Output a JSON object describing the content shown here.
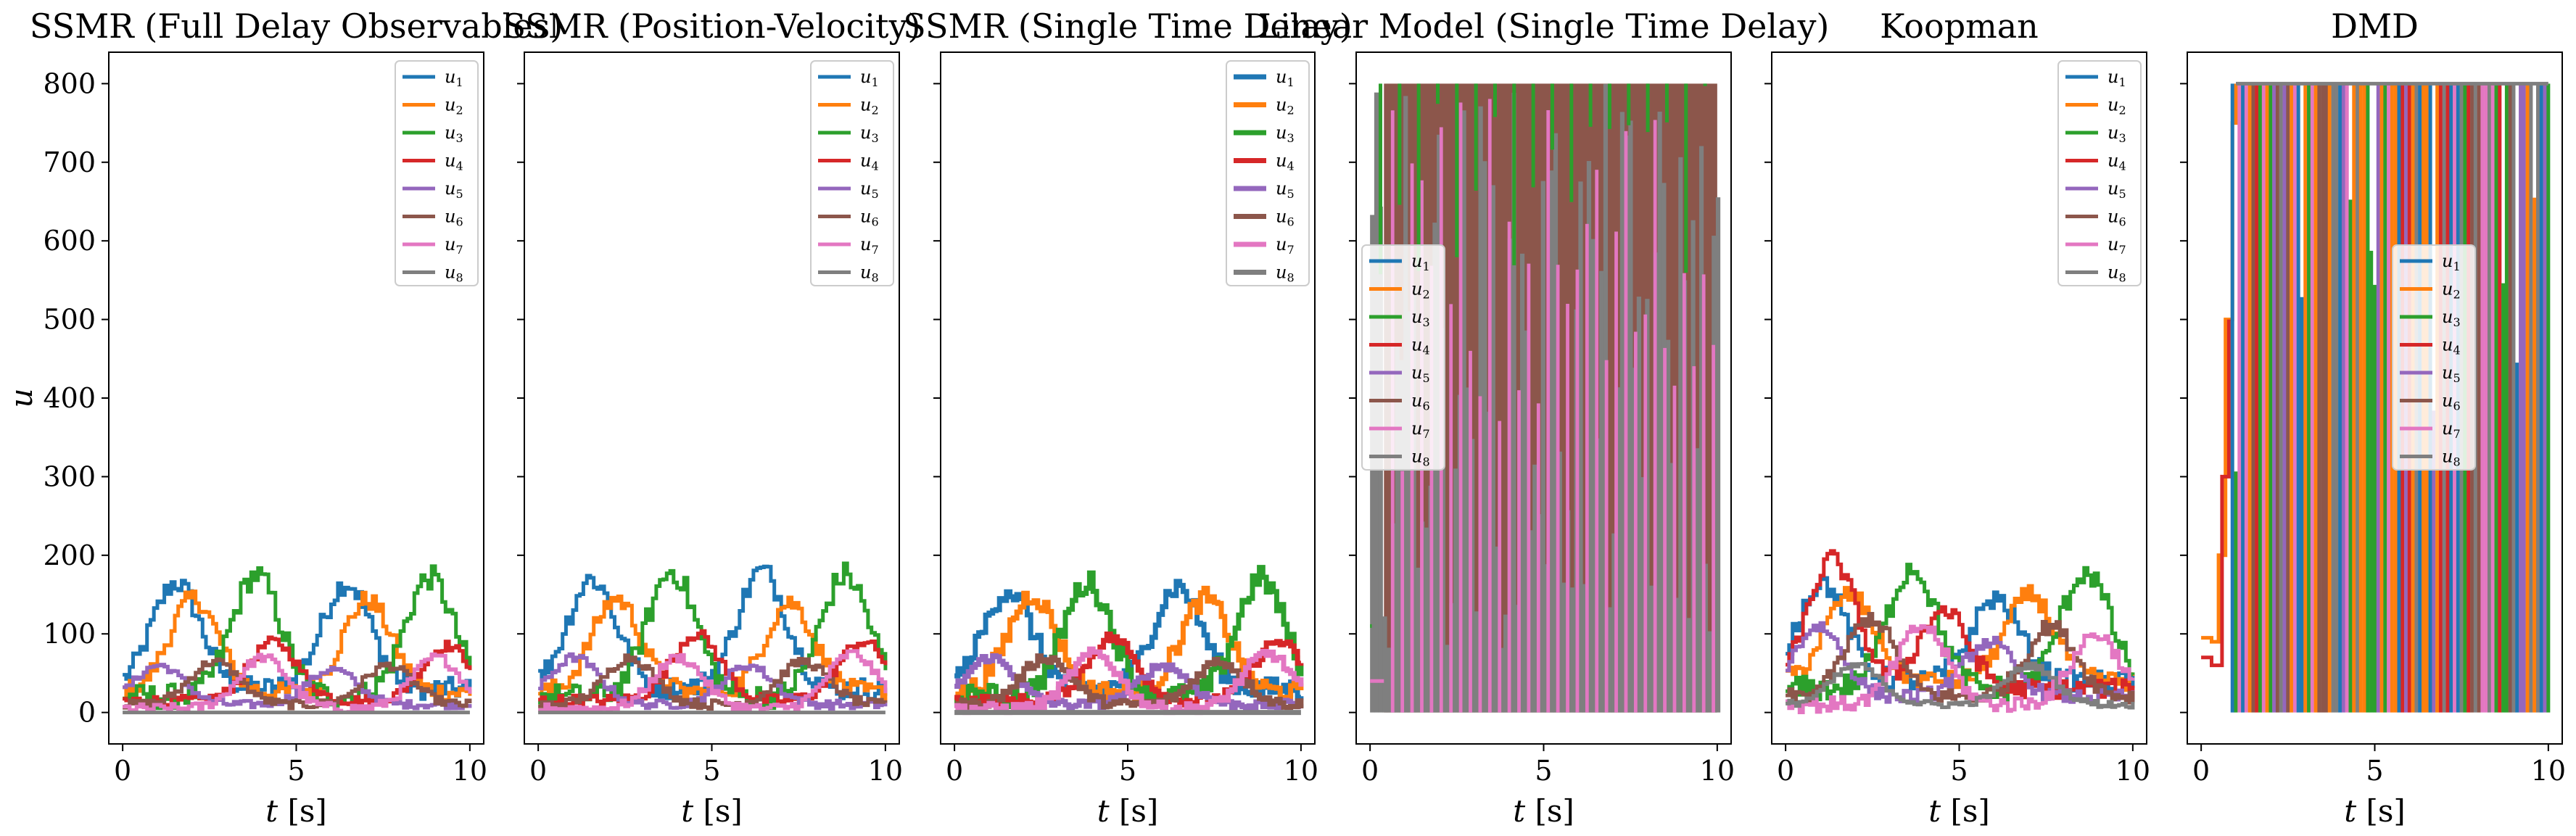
{
  "colors": {
    "u1": "#1f77b4",
    "u2": "#ff7f0e",
    "u3": "#2ca02c",
    "u4": "#d62728",
    "u5": "#9467bd",
    "u6": "#8c564b",
    "u7": "#e377c2",
    "u8": "#7f7f7f"
  },
  "chart_data": [
    {
      "type": "line",
      "title": "SSMR (Full Delay Observables)",
      "xlabel": "t [s]",
      "ylabel": "u",
      "xlim": [
        -0.4,
        10.4
      ],
      "ylim": [
        -40,
        840
      ],
      "xticks": [
        0,
        5,
        10
      ],
      "yticks": [
        0,
        100,
        200,
        300,
        400,
        500,
        600,
        700,
        800
      ],
      "legend": "upper right",
      "behavior": "oscillatory",
      "series": [
        {
          "name": "u1",
          "peaks": [
            [
              1.5,
              165
            ],
            [
              6.4,
              165
            ]
          ],
          "base": 30,
          "amp": 130
        },
        {
          "name": "u2",
          "peaks": [
            [
              2.0,
              145
            ],
            [
              7.0,
              143
            ]
          ],
          "base": 25,
          "amp": 115
        },
        {
          "name": "u3",
          "peaks": [
            [
              3.8,
              175
            ],
            [
              8.8,
              172
            ]
          ],
          "base": 20,
          "amp": 145
        },
        {
          "name": "u4",
          "peaks": [
            [
              4.3,
              90
            ],
            [
              9.3,
              85
            ]
          ],
          "base": 15,
          "amp": 60
        },
        {
          "name": "u5",
          "peaks": [
            [
              1.0,
              60
            ],
            [
              6.0,
              55
            ]
          ],
          "base": 10,
          "amp": 45
        },
        {
          "name": "u6",
          "peaks": [
            [
              2.6,
              65
            ],
            [
              7.6,
              60
            ]
          ],
          "base": 10,
          "amp": 50
        },
        {
          "name": "u7",
          "peaks": [
            [
              4.0,
              70
            ],
            [
              9.0,
              70
            ]
          ],
          "base": 5,
          "amp": 55
        },
        {
          "name": "u8",
          "peaks": [],
          "base": 0,
          "amp": 0
        }
      ]
    },
    {
      "type": "line",
      "title": "SSMR (Position-Velocity)",
      "xlabel": "t [s]",
      "ylabel": "",
      "xlim": [
        -0.4,
        10.4
      ],
      "ylim": [
        -40,
        840
      ],
      "xticks": [
        0,
        5,
        10
      ],
      "yticks": [
        0,
        100,
        200,
        300,
        400,
        500,
        600,
        700,
        800
      ],
      "legend": "upper right",
      "behavior": "oscillatory",
      "series": [
        {
          "name": "u1",
          "peaks": [
            [
              1.5,
              170
            ],
            [
              6.4,
              180
            ]
          ],
          "base": 30,
          "amp": 135
        },
        {
          "name": "u2",
          "peaks": [
            [
              2.2,
              145
            ],
            [
              7.2,
              140
            ]
          ],
          "base": 25,
          "amp": 115
        },
        {
          "name": "u3",
          "peaks": [
            [
              3.8,
              180
            ],
            [
              8.8,
              175
            ]
          ],
          "base": 20,
          "amp": 150
        },
        {
          "name": "u4",
          "peaks": [
            [
              4.5,
              100
            ],
            [
              9.3,
              90
            ]
          ],
          "base": 15,
          "amp": 70
        },
        {
          "name": "u5",
          "peaks": [
            [
              1.0,
              70
            ],
            [
              6.0,
              60
            ]
          ],
          "base": 10,
          "amp": 50
        },
        {
          "name": "u6",
          "peaks": [
            [
              2.6,
              70
            ],
            [
              7.6,
              65
            ]
          ],
          "base": 10,
          "amp": 55
        },
        {
          "name": "u7",
          "peaks": [
            [
              4.0,
              70
            ],
            [
              9.0,
              75
            ]
          ],
          "base": 5,
          "amp": 55
        },
        {
          "name": "u8",
          "peaks": [],
          "base": 0,
          "amp": 0
        }
      ]
    },
    {
      "type": "line",
      "title": "SSMR (Single Time Delay)",
      "xlabel": "t [s]",
      "ylabel": "",
      "xlim": [
        -0.4,
        10.4
      ],
      "ylim": [
        -40,
        840
      ],
      "xticks": [
        0,
        5,
        10
      ],
      "yticks": [
        0,
        100,
        200,
        300,
        400,
        500,
        600,
        700,
        800
      ],
      "legend": "upper right",
      "behavior": "oscillatory",
      "series": [
        {
          "name": "u1",
          "peaks": [
            [
              1.5,
              155
            ],
            [
              6.4,
              160
            ]
          ],
          "base": 30,
          "amp": 125
        },
        {
          "name": "u2",
          "peaks": [
            [
              2.2,
              150
            ],
            [
              7.2,
              145
            ]
          ],
          "base": 25,
          "amp": 120
        },
        {
          "name": "u3",
          "peaks": [
            [
              3.8,
              165
            ],
            [
              8.8,
              170
            ]
          ],
          "base": 20,
          "amp": 140
        },
        {
          "name": "u4",
          "peaks": [
            [
              4.5,
              95
            ],
            [
              9.3,
              90
            ]
          ],
          "base": 15,
          "amp": 65
        },
        {
          "name": "u5",
          "peaks": [
            [
              1.0,
              70
            ],
            [
              6.0,
              60
            ]
          ],
          "base": 10,
          "amp": 50
        },
        {
          "name": "u6",
          "peaks": [
            [
              2.6,
              70
            ],
            [
              7.6,
              65
            ]
          ],
          "base": 10,
          "amp": 55
        },
        {
          "name": "u7",
          "peaks": [
            [
              4.0,
              75
            ],
            [
              9.0,
              75
            ]
          ],
          "base": 5,
          "amp": 60
        },
        {
          "name": "u8",
          "peaks": [],
          "base": 0,
          "amp": 0
        }
      ]
    },
    {
      "type": "line",
      "title": "Linear Model (Single Time Delay)",
      "xlabel": "t [s]",
      "ylabel": "",
      "xlim": [
        -0.4,
        10.4
      ],
      "ylim": [
        -40,
        840
      ],
      "xticks": [
        0,
        5,
        10
      ],
      "yticks": [
        0,
        100,
        200,
        300,
        400,
        500,
        600,
        700,
        800
      ],
      "legend": "center left",
      "behavior": "saturated",
      "saturation": 800,
      "series": [
        {
          "name": "u1"
        },
        {
          "name": "u2"
        },
        {
          "name": "u3"
        },
        {
          "name": "u4"
        },
        {
          "name": "u5"
        },
        {
          "name": "u6"
        },
        {
          "name": "u7"
        },
        {
          "name": "u8"
        }
      ]
    },
    {
      "type": "line",
      "title": "Koopman",
      "xlabel": "t [s]",
      "ylabel": "",
      "xlim": [
        -0.4,
        10.4
      ],
      "ylim": [
        -40,
        840
      ],
      "xticks": [
        0,
        5,
        10
      ],
      "yticks": [
        0,
        100,
        200,
        300,
        400,
        500,
        600,
        700,
        800
      ],
      "legend": "upper right",
      "behavior": "oscillatory",
      "series": [
        {
          "name": "u1",
          "peaks": [
            [
              1.0,
              165
            ],
            [
              6.0,
              145
            ]
          ],
          "base": 40,
          "amp": 120
        },
        {
          "name": "u2",
          "peaks": [
            [
              1.8,
              150
            ],
            [
              7.0,
              150
            ]
          ],
          "base": 40,
          "amp": 110
        },
        {
          "name": "u3",
          "peaks": [
            [
              3.6,
              185
            ],
            [
              8.6,
              180
            ]
          ],
          "base": 30,
          "amp": 150
        },
        {
          "name": "u4",
          "peaks": [
            [
              1.3,
              195
            ],
            [
              4.5,
              130
            ]
          ],
          "base": 30,
          "amp": 110
        },
        {
          "name": "u5",
          "peaks": [
            [
              0.9,
              110
            ],
            [
              5.8,
              90
            ]
          ],
          "base": 20,
          "amp": 80
        },
        {
          "name": "u6",
          "peaks": [
            [
              2.4,
              120
            ],
            [
              7.6,
              110
            ]
          ],
          "base": 20,
          "amp": 90
        },
        {
          "name": "u7",
          "peaks": [
            [
              3.9,
              110
            ],
            [
              8.9,
              100
            ]
          ],
          "base": 10,
          "amp": 90
        },
        {
          "name": "u8",
          "peaks": [
            [
              2.0,
              60
            ],
            [
              7.0,
              60
            ]
          ],
          "base": 10,
          "amp": 40
        }
      ]
    },
    {
      "type": "line",
      "title": "DMD",
      "xlabel": "t [s]",
      "ylabel": "",
      "xlim": [
        -0.4,
        10.4
      ],
      "ylim": [
        -40,
        840
      ],
      "xticks": [
        0,
        5,
        10
      ],
      "yticks": [
        0,
        100,
        200,
        300,
        400,
        500,
        600,
        700,
        800
      ],
      "legend": "center right",
      "behavior": "bang-bang",
      "saturation": 800,
      "series": [
        {
          "name": "u1"
        },
        {
          "name": "u2"
        },
        {
          "name": "u3"
        },
        {
          "name": "u4"
        },
        {
          "name": "u5"
        },
        {
          "name": "u6"
        },
        {
          "name": "u7"
        },
        {
          "name": "u8"
        }
      ]
    }
  ]
}
